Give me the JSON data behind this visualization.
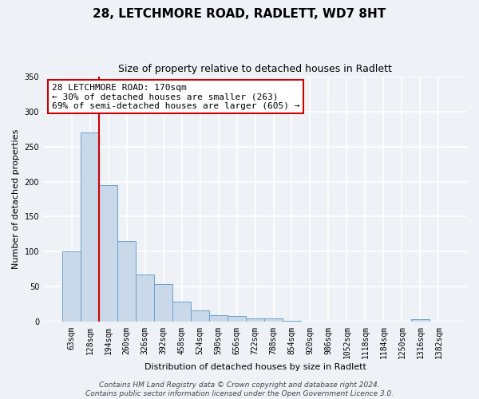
{
  "title": "28, LETCHMORE ROAD, RADLETT, WD7 8HT",
  "subtitle": "Size of property relative to detached houses in Radlett",
  "xlabel": "Distribution of detached houses by size in Radlett",
  "ylabel": "Number of detached properties",
  "bar_labels": [
    "63sqm",
    "128sqm",
    "194sqm",
    "260sqm",
    "326sqm",
    "392sqm",
    "458sqm",
    "524sqm",
    "590sqm",
    "656sqm",
    "722sqm",
    "788sqm",
    "854sqm",
    "920sqm",
    "986sqm",
    "1052sqm",
    "1118sqm",
    "1184sqm",
    "1250sqm",
    "1316sqm",
    "1382sqm"
  ],
  "bar_heights": [
    100,
    270,
    195,
    115,
    68,
    54,
    29,
    17,
    10,
    8,
    5,
    5,
    2,
    1,
    1,
    1,
    0,
    0,
    0,
    4,
    0
  ],
  "bar_color": "#c9d9ea",
  "bar_edge_color": "#6aa0cc",
  "vline_x": 1.5,
  "vline_color": "#cc0000",
  "annotation_lines": [
    "28 LETCHMORE ROAD: 170sqm",
    "← 30% of detached houses are smaller (263)",
    "69% of semi-detached houses are larger (605) →"
  ],
  "annotation_box_color": "#cc0000",
  "ylim": [
    0,
    350
  ],
  "yticks": [
    0,
    50,
    100,
    150,
    200,
    250,
    300,
    350
  ],
  "footer_lines": [
    "Contains HM Land Registry data © Crown copyright and database right 2024.",
    "Contains public sector information licensed under the Open Government Licence 3.0."
  ],
  "bg_color": "#eef2f7",
  "grid_color": "#ffffff",
  "title_fontsize": 11,
  "subtitle_fontsize": 9,
  "axis_label_fontsize": 8,
  "tick_fontsize": 7,
  "annotation_fontsize": 8,
  "footer_fontsize": 6.5
}
